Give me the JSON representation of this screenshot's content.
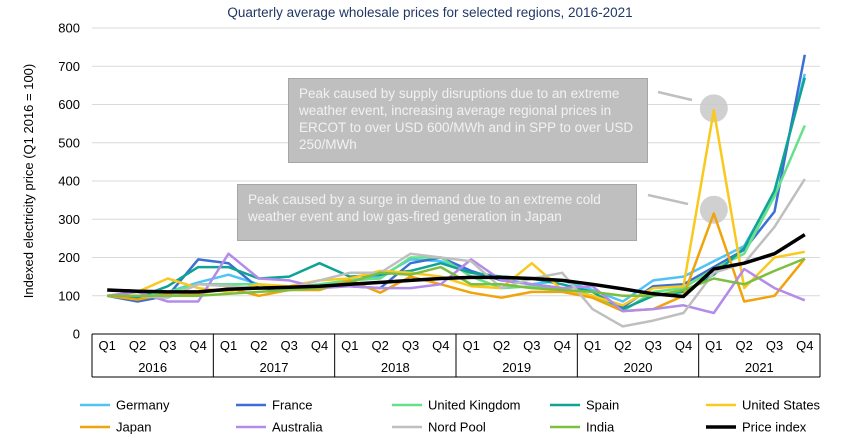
{
  "chart_data": {
    "type": "line",
    "title": "Quarterly average wholesale prices for selected regions, 2016-2021",
    "ylabel": "Indexed electricity price (Q1 2016 = 100)",
    "xlabel": "",
    "ylim": [
      0,
      800
    ],
    "yticks": [
      0,
      100,
      200,
      300,
      400,
      500,
      600,
      700,
      800
    ],
    "grid": true,
    "legend_placement": "bottom",
    "quarters": [
      "Q1",
      "Q2",
      "Q3",
      "Q4"
    ],
    "years": [
      "2016",
      "2017",
      "2018",
      "2019",
      "2020",
      "2021"
    ],
    "series": [
      {
        "name": "Germany",
        "color": "#4fc3f7",
        "width": 2.5,
        "values": [
          100,
          95,
          110,
          135,
          155,
          130,
          120,
          125,
          140,
          150,
          195,
          190,
          160,
          145,
          130,
          140,
          115,
          85,
          140,
          150,
          190,
          230,
          370,
          680
        ]
      },
      {
        "name": "France",
        "color": "#3b6fd4",
        "width": 2.5,
        "values": [
          100,
          85,
          100,
          195,
          185,
          120,
          115,
          125,
          125,
          120,
          185,
          200,
          165,
          140,
          130,
          120,
          100,
          70,
          125,
          130,
          175,
          220,
          320,
          730
        ]
      },
      {
        "name": "United Kingdom",
        "color": "#66e08a",
        "width": 2.5,
        "values": [
          100,
          95,
          110,
          130,
          130,
          130,
          120,
          130,
          140,
          145,
          200,
          200,
          150,
          120,
          125,
          120,
          100,
          60,
          110,
          120,
          170,
          210,
          360,
          545
        ]
      },
      {
        "name": "Spain",
        "color": "#0fa394",
        "width": 2.5,
        "values": [
          100,
          95,
          125,
          175,
          175,
          145,
          150,
          185,
          150,
          155,
          165,
          185,
          160,
          150,
          145,
          130,
          110,
          65,
          100,
          110,
          155,
          225,
          375,
          670
        ]
      },
      {
        "name": "United States",
        "color": "#f9c91e",
        "width": 2.5,
        "values": [
          100,
          110,
          145,
          120,
          110,
          130,
          125,
          140,
          145,
          165,
          160,
          150,
          125,
          120,
          185,
          115,
          100,
          75,
          120,
          125,
          585,
          120,
          200,
          215
        ]
      },
      {
        "name": "Japan",
        "color": "#f0a30a",
        "width": 2.5,
        "values": [
          100,
          90,
          105,
          105,
          120,
          100,
          115,
          115,
          140,
          108,
          150,
          130,
          108,
          95,
          110,
          110,
          95,
          60,
          65,
          100,
          315,
          85,
          100,
          197
        ]
      },
      {
        "name": "Australia",
        "color": "#b38bea",
        "width": 2.5,
        "values": [
          100,
          110,
          85,
          85,
          210,
          145,
          140,
          120,
          125,
          120,
          120,
          130,
          195,
          140,
          130,
          120,
          125,
          60,
          65,
          75,
          55,
          170,
          120,
          88
        ]
      },
      {
        "name": "Nord Pool",
        "color": "#bfbfbf",
        "width": 2.5,
        "values": [
          100,
          100,
          95,
          130,
          125,
          120,
          120,
          140,
          160,
          160,
          210,
          200,
          190,
          120,
          145,
          160,
          65,
          20,
          35,
          55,
          160,
          185,
          280,
          405
        ]
      },
      {
        "name": "India",
        "color": "#7cbf3f",
        "width": 2.5,
        "values": [
          100,
          100,
          100,
          100,
          105,
          110,
          115,
          120,
          135,
          160,
          155,
          175,
          130,
          130,
          120,
          115,
          110,
          100,
          100,
          115,
          145,
          130,
          165,
          197
        ]
      },
      {
        "name": "Price index",
        "color": "#000000",
        "width": 3.5,
        "values": [
          115,
          112,
          110,
          110,
          117,
          120,
          122,
          125,
          130,
          135,
          140,
          145,
          148,
          148,
          145,
          140,
          130,
          118,
          105,
          98,
          170,
          185,
          210,
          260
        ]
      }
    ],
    "annotations": [
      {
        "text": "Peak caused by supply disruptions due to an extreme weather event, increasing average regional prices in ERCOT to over USD 600/MWh and in SPP to over USD 250/MWh",
        "quarter": "Q1",
        "year": "2021",
        "value": 590
      },
      {
        "text": "Peak caused by a surge in demand due to an extreme cold weather event and low gas-fired generation in Japan",
        "quarter": "Q1",
        "year": "2021",
        "value": 325
      }
    ]
  }
}
